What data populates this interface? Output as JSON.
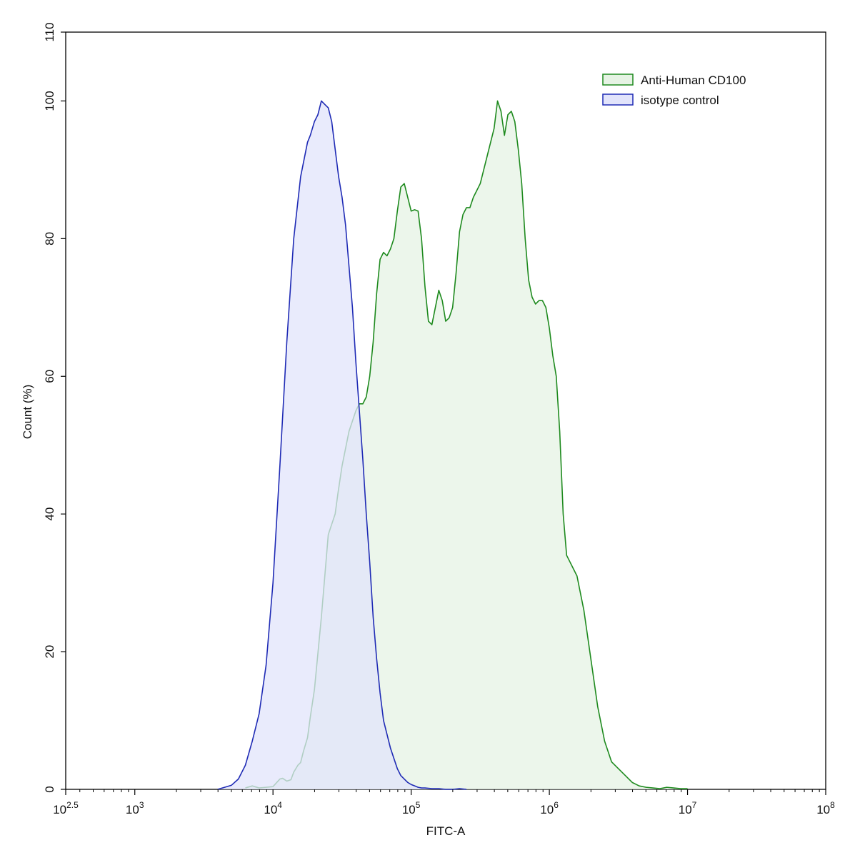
{
  "chart_data": {
    "type": "area",
    "title": "",
    "xlabel": "FITC-A",
    "ylabel": "Count  (%)",
    "x_scale": "log10",
    "xlim": [
      316.23,
      100000000
    ],
    "ylim": [
      0,
      110
    ],
    "x_ticks": [
      {
        "value": 316.23,
        "base": "10",
        "exp": "2.5"
      },
      {
        "value": 1000,
        "base": "10",
        "exp": "3"
      },
      {
        "value": 10000,
        "base": "10",
        "exp": "4"
      },
      {
        "value": 100000,
        "base": "10",
        "exp": "5"
      },
      {
        "value": 1000000,
        "base": "10",
        "exp": "6"
      },
      {
        "value": 10000000,
        "base": "10",
        "exp": "7"
      },
      {
        "value": 100000000,
        "base": "10",
        "exp": "8"
      }
    ],
    "y_ticks": [
      0,
      20,
      40,
      60,
      80,
      100,
      110
    ],
    "grid": false,
    "legend_position": "top-right",
    "series": [
      {
        "name": "Anti-Human CD100",
        "stroke": "#1e8a1e",
        "fill": "#e6f3e4",
        "x": [
          6310,
          7080,
          7940,
          8910,
          10000,
          11220,
          11750,
          12590,
          13490,
          14130,
          15140,
          15850,
          16600,
          17780,
          18620,
          19950,
          22390,
          25120,
          28180,
          29510,
          31620,
          33880,
          35480,
          37580,
          39810,
          42170,
          44670,
          47320,
          50120,
          53090,
          56230,
          59570,
          63100,
          66830,
          70790,
          74990,
          79430,
          84140,
          89130,
          94410,
          100000,
          105930,
          112200,
          118850,
          125890,
          133350,
          141250,
          149620,
          158490,
          167880,
          177830,
          188360,
          199530,
          211350,
          223870,
          237140,
          251190,
          266070,
          281840,
          298540,
          316230,
          334970,
          354810,
          375840,
          398110,
          421700,
          446680,
          473150,
          501190,
          530880,
          562340,
          595660,
          630960,
          668340,
          707950,
          749890,
          794330,
          841400,
          891250,
          944060,
          1000000,
          1059250,
          1122020,
          1188500,
          1258930,
          1333520,
          1412540,
          1496240,
          1584890,
          1778280,
          1995260,
          2238720,
          2511890,
          2818380,
          3162280,
          3548130,
          3981070,
          4466840,
          5011870,
          5623410,
          6309570,
          7079460,
          7943280,
          8912510,
          10000000
        ],
        "y": [
          0.2,
          0.5,
          0.2,
          0.3,
          0.4,
          1.5,
          1.6,
          1.2,
          1.4,
          2.5,
          3.5,
          3.9,
          5.5,
          7.5,
          10.5,
          14.5,
          25,
          37,
          40,
          43,
          47,
          50,
          52,
          53.5,
          55,
          56,
          56,
          57,
          60,
          65,
          72,
          77,
          78,
          77.5,
          78.5,
          80,
          84,
          87.5,
          88,
          86,
          84,
          84.2,
          84,
          80,
          73,
          68,
          67.5,
          70,
          72.5,
          71,
          68,
          68.5,
          70,
          75,
          81,
          83.5,
          84.5,
          84.5,
          86,
          87,
          88,
          90,
          92,
          94,
          96,
          100,
          98.5,
          95,
          98,
          98.5,
          97,
          93,
          88,
          80,
          74,
          71.5,
          70.5,
          71,
          71,
          70,
          67,
          63,
          60,
          52,
          40,
          34,
          33,
          32,
          31,
          26,
          19,
          12,
          7,
          4,
          3,
          2,
          1,
          0.5,
          0.3,
          0.2,
          0.1,
          0.3,
          0.2,
          0.1,
          0.1
        ]
      },
      {
        "name": "isotype control",
        "stroke": "#1f2bb5",
        "fill": "#e2e4fb",
        "x": [
          3980,
          4470,
          5010,
          5620,
          6310,
          7080,
          7940,
          8910,
          10000,
          11220,
          12590,
          14130,
          15850,
          17780,
          18620,
          19950,
          21130,
          22390,
          23710,
          25120,
          26610,
          28180,
          29850,
          31620,
          33500,
          35480,
          37580,
          39810,
          42170,
          44670,
          47320,
          50120,
          53090,
          56230,
          59570,
          63100,
          66830,
          70790,
          74990,
          79430,
          84140,
          89130,
          94410,
          100000,
          105930,
          112200,
          118850,
          125890,
          141250,
          158490,
          177830,
          199530,
          223870,
          251190
        ],
        "y": [
          0,
          0.3,
          0.6,
          1.5,
          3.5,
          7,
          11,
          18,
          30,
          47,
          65,
          80,
          89,
          94,
          95,
          97,
          98,
          100,
          99.5,
          99,
          97,
          93,
          89,
          86,
          82,
          76,
          70,
          62,
          55,
          48,
          40,
          33,
          25,
          19,
          14,
          10,
          8,
          6,
          4.5,
          3,
          2,
          1.5,
          1,
          0.7,
          0.5,
          0.3,
          0.2,
          0.2,
          0.1,
          0.1,
          0,
          0,
          0.1,
          0
        ]
      }
    ]
  }
}
